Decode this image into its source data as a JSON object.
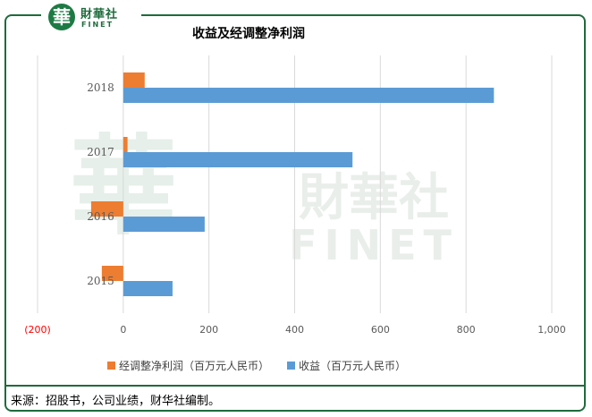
{
  "watermark": {
    "brand_cn": "財華社",
    "brand_en": "FINET",
    "logo_char": "華"
  },
  "header": {
    "title": "收益及经调整净利润"
  },
  "source": "来源：招股书，公司业绩，财华社编制。",
  "colors": {
    "frame": "#1e6b3c",
    "adjusted_net_profit": "#ed7d31",
    "revenue": "#5b9bd5",
    "negative_tick": "#ff0000"
  },
  "chart_data": {
    "type": "bar",
    "orientation": "horizontal",
    "categories": [
      "2018",
      "2017",
      "2016",
      "2015"
    ],
    "series": [
      {
        "name": "经调整净利润（百万元人民币）",
        "values": [
          50,
          10,
          -75,
          -50
        ]
      },
      {
        "name": "收益（百万元人民币）",
        "values": [
          865,
          535,
          190,
          115
        ]
      }
    ],
    "xlim": [
      -200,
      1000
    ],
    "xticks": [
      -200,
      0,
      200,
      400,
      600,
      800,
      1000
    ],
    "xtick_labels": [
      "(200)",
      "0",
      "200",
      "400",
      "600",
      "800",
      "1,000"
    ],
    "grid": true,
    "legend_position": "bottom"
  }
}
